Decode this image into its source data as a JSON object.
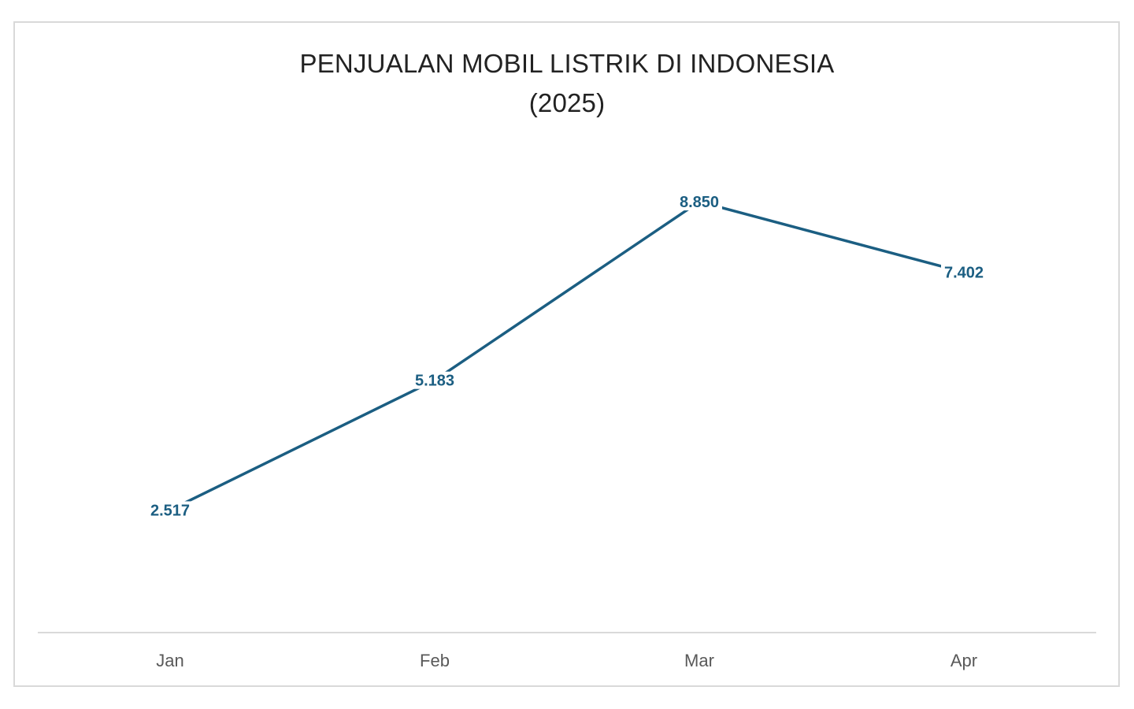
{
  "chart_data": {
    "type": "line",
    "title": "PENJUALAN MOBIL LISTRIK DI INDONESIA",
    "subtitle": "(2025)",
    "categories": [
      "Jan",
      "Feb",
      "Mar",
      "Apr"
    ],
    "series": [
      {
        "values": [
          2517,
          5183,
          8850,
          7402
        ],
        "labels": [
          "2.517",
          "5.183",
          "8.850",
          "7.402"
        ],
        "color": "#1b5e82"
      }
    ],
    "ylim": [
      0,
      10000
    ],
    "grid": false,
    "legend": "none",
    "axis_color": "#d9d9d9"
  }
}
